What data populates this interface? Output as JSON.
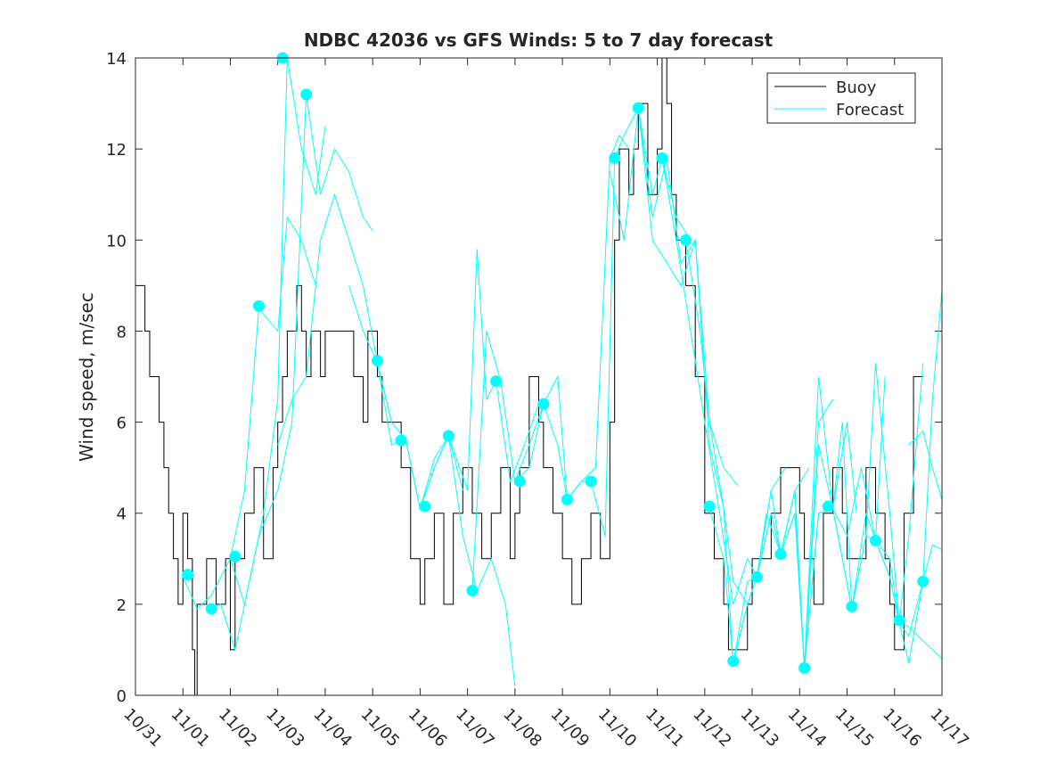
{
  "chart_data": {
    "type": "line",
    "title": "NDBC 42036 vs GFS Winds: 5 to 7 day forecast",
    "xlabel": "",
    "ylabel": "Wind speed, m/sec",
    "xlim": [
      0,
      17
    ],
    "ylim": [
      0,
      14
    ],
    "x_tick_values": [
      0,
      1,
      2,
      3,
      4,
      5,
      6,
      7,
      8,
      9,
      10,
      11,
      12,
      13,
      14,
      15,
      16,
      17
    ],
    "x_tick_labels": [
      "10/31",
      "11/01",
      "11/02",
      "11/03",
      "11/04",
      "11/05",
      "11/06",
      "11/07",
      "11/08",
      "11/09",
      "11/10",
      "11/11",
      "11/12",
      "11/13",
      "11/14",
      "11/15",
      "11/16",
      "11/17"
    ],
    "y_ticks": [
      0,
      2,
      4,
      6,
      8,
      10,
      12,
      14
    ],
    "legend": {
      "position": "top-right",
      "entries": [
        "Buoy",
        "Forecast"
      ]
    },
    "colors": {
      "buoy": "#000000",
      "forecast": "#00ffff"
    },
    "series": [
      {
        "name": "Buoy",
        "x": [
          0,
          0.2,
          0.3,
          0.5,
          0.6,
          0.7,
          0.8,
          0.9,
          1.0,
          1.1,
          1.2,
          1.25,
          1.3,
          1.5,
          1.7,
          1.9,
          2.0,
          2.1,
          2.3,
          2.5,
          2.7,
          2.9,
          3.0,
          3.1,
          3.2,
          3.4,
          3.5,
          3.6,
          3.7,
          3.9,
          4.0,
          4.3,
          4.6,
          4.8,
          4.9,
          5.1,
          5.2,
          5.4,
          5.6,
          5.8,
          6.0,
          6.1,
          6.3,
          6.5,
          6.7,
          6.9,
          7.1,
          7.3,
          7.5,
          7.7,
          7.9,
          8.0,
          8.1,
          8.3,
          8.5,
          8.6,
          8.8,
          9.0,
          9.2,
          9.4,
          9.6,
          9.8,
          10.0,
          10.1,
          10.2,
          10.4,
          10.5,
          10.6,
          10.8,
          11.0,
          11.1,
          11.2,
          11.3,
          11.4,
          11.6,
          11.8,
          12.0,
          12.2,
          12.4,
          12.5,
          12.7,
          12.9,
          13.0,
          13.2,
          13.4,
          13.6,
          13.8,
          14.0,
          14.1,
          14.3,
          14.5,
          14.7,
          14.9,
          15.0,
          15.2,
          15.4,
          15.6,
          15.8,
          15.9,
          16.0,
          16.2,
          16.4
        ],
        "values": [
          9,
          8,
          7,
          6,
          5,
          4,
          3,
          2,
          4,
          3,
          1,
          0,
          2,
          3,
          2,
          3,
          1,
          3,
          4,
          5,
          3,
          5,
          6,
          7,
          8,
          9,
          8,
          7,
          8,
          7,
          8,
          8,
          7,
          6,
          8,
          7,
          6,
          6,
          5,
          3,
          2,
          3,
          4,
          2,
          4,
          5,
          4,
          3,
          4,
          5,
          3,
          4,
          5,
          7,
          6,
          5,
          4,
          3,
          2,
          3,
          4,
          3,
          6,
          10,
          12,
          11,
          12,
          13,
          11,
          12,
          14,
          13,
          11,
          10,
          9,
          7,
          4,
          3,
          2,
          1,
          1,
          2,
          3,
          3,
          4,
          5,
          5,
          4,
          3,
          2,
          4,
          5,
          4,
          3,
          3,
          5,
          4,
          3,
          2,
          1,
          4,
          7
        ]
      },
      {
        "name": "Forecast",
        "runs": [
          {
            "x": [
              1.0,
              1.3,
              1.6,
              2.0,
              2.3,
              2.6,
              3.0,
              3.2,
              3.5,
              3.8
            ],
            "values": [
              2.6,
              1.9,
              2.2,
              3.0,
              4.5,
              8.5,
              8.0,
              10.5,
              10.0,
              9.0
            ]
          },
          {
            "x": [
              1.5,
              1.8,
              2.1,
              2.4,
              2.7,
              3.0,
              3.2,
              3.5,
              3.8,
              4.0
            ],
            "values": [
              1.9,
              2.0,
              1.0,
              2.5,
              4.0,
              6.5,
              14.0,
              12.0,
              11.0,
              12.5
            ]
          },
          {
            "x": [
              2.0,
              2.3,
              2.6,
              3.0,
              3.3,
              3.6,
              3.9,
              4.2,
              4.5,
              4.8,
              5.0
            ],
            "values": [
              3.0,
              2.0,
              3.5,
              4.5,
              6.0,
              13.2,
              11.0,
              12.0,
              11.5,
              10.5,
              10.2
            ]
          },
          {
            "x": [
              3.0,
              3.3,
              3.6,
              3.9,
              4.2,
              4.5,
              4.8,
              5.1,
              5.4,
              5.7
            ],
            "values": [
              5.5,
              6.5,
              7.0,
              10.0,
              11.0,
              10.0,
              9.0,
              7.3,
              6.0,
              5.6
            ]
          },
          {
            "x": [
              4.5,
              4.8,
              5.1,
              5.4,
              5.7,
              6.0,
              6.3,
              6.6,
              6.9
            ],
            "values": [
              9.0,
              8.0,
              7.3,
              6.0,
              5.6,
              4.1,
              5.0,
              5.7,
              4.5
            ]
          },
          {
            "x": [
              5.1,
              5.4,
              5.7,
              6.0,
              6.3,
              6.6,
              6.9,
              7.2,
              7.5,
              7.8,
              8.0
            ],
            "values": [
              7.3,
              5.5,
              5.6,
              4.1,
              5.0,
              5.7,
              3.5,
              2.3,
              3.0,
              2.0,
              0.2
            ]
          },
          {
            "x": [
              6.0,
              6.3,
              6.6,
              7.0,
              7.2,
              7.4,
              7.6,
              7.9,
              8.2,
              8.5
            ],
            "values": [
              4.1,
              5.2,
              5.7,
              4.5,
              9.8,
              6.5,
              6.9,
              4.7,
              5.5,
              6.4
            ]
          },
          {
            "x": [
              7.1,
              7.4,
              7.7,
              8.0,
              8.3,
              8.6,
              8.9,
              9.1,
              9.4
            ],
            "values": [
              2.3,
              8.0,
              6.9,
              4.7,
              5.0,
              6.4,
              7.0,
              4.3,
              4.7
            ]
          },
          {
            "x": [
              8.0,
              8.3,
              8.6,
              8.9,
              9.1,
              9.4,
              9.7,
              10.0,
              10.2,
              10.4
            ],
            "values": [
              4.7,
              5.5,
              6.4,
              5.5,
              4.3,
              4.7,
              5.0,
              11.8,
              12.3,
              12.0
            ]
          },
          {
            "x": [
              9.1,
              9.4,
              9.6,
              9.9,
              10.1,
              10.3,
              10.6,
              10.9,
              11.1,
              11.4,
              11.7
            ],
            "values": [
              4.3,
              4.7,
              4.7,
              3.5,
              11.8,
              12.3,
              12.9,
              11.0,
              11.8,
              10.5,
              10.0
            ]
          },
          {
            "x": [
              10.0,
              10.3,
              10.6,
              10.9,
              11.2,
              11.5,
              11.8,
              12.1,
              12.4,
              12.7
            ],
            "values": [
              11.5,
              10.0,
              12.9,
              10.5,
              11.8,
              9.5,
              10.0,
              6.0,
              5.0,
              4.6
            ]
          },
          {
            "x": [
              10.6,
              10.9,
              11.2,
              11.5,
              11.8,
              12.1,
              12.4,
              12.6,
              12.9,
              13.1
            ],
            "values": [
              12.9,
              10.0,
              9.5,
              9.0,
              10.0,
              5.5,
              4.1,
              2.5,
              2.0,
              2.6
            ]
          },
          {
            "x": [
              11.1,
              11.4,
              11.7,
              12.0,
              12.3,
              12.6,
              12.9,
              13.1,
              13.4,
              13.7
            ],
            "values": [
              11.8,
              10.0,
              8.0,
              6.0,
              4.1,
              2.0,
              3.0,
              2.6,
              4.5,
              5.0
            ]
          },
          {
            "x": [
              11.6,
              11.9,
              12.1,
              12.4,
              12.6,
              12.9,
              13.1,
              13.3,
              13.6,
              13.9,
              14.2
            ],
            "values": [
              10.0,
              8.0,
              6.0,
              4.1,
              0.7,
              2.5,
              2.6,
              4.0,
              3.1,
              4.5,
              5.0
            ]
          },
          {
            "x": [
              12.1,
              12.4,
              12.6,
              12.9,
              13.1,
              13.4,
              13.6,
              13.9,
              14.1,
              14.4,
              14.7
            ],
            "values": [
              4.1,
              3.0,
              0.7,
              2.0,
              2.6,
              4.5,
              3.1,
              4.0,
              0.6,
              6.0,
              6.5
            ]
          },
          {
            "x": [
              12.6,
              12.9,
              13.1,
              13.4,
              13.6,
              13.9,
              14.1,
              14.4,
              14.7,
              15.0,
              15.2
            ],
            "values": [
              0.7,
              2.0,
              2.6,
              4.0,
              3.1,
              4.5,
              0.6,
              7.0,
              4.1,
              6.0,
              4.0
            ]
          },
          {
            "x": [
              13.1,
              13.4,
              13.6,
              13.9,
              14.1,
              14.4,
              14.7,
              15.0,
              15.3,
              15.6,
              15.8
            ],
            "values": [
              2.6,
              4.0,
              3.1,
              4.5,
              0.6,
              5.5,
              4.1,
              3.5,
              5.0,
              3.4,
              7.0
            ]
          },
          {
            "x": [
              13.6,
              13.9,
              14.1,
              14.4,
              14.7,
              14.9,
              15.1,
              15.4,
              15.6,
              15.9,
              16.1
            ],
            "values": [
              3.1,
              4.0,
              0.6,
              4.0,
              4.1,
              6.0,
              1.9,
              4.0,
              3.4,
              3.0,
              1.6
            ]
          },
          {
            "x": [
              14.1,
              14.4,
              14.7,
              15.1,
              15.4,
              15.6,
              15.9,
              16.1,
              16.3,
              16.6
            ],
            "values": [
              0.6,
              4.0,
              4.1,
              1.9,
              3.5,
              7.3,
              4.0,
              1.6,
              3.5,
              7.3
            ]
          },
          {
            "x": [
              14.7,
              15.1,
              15.4,
              15.6,
              15.9,
              16.1,
              16.3,
              16.6,
              16.8,
              17.0
            ],
            "values": [
              4.1,
              1.9,
              3.5,
              3.4,
              2.6,
              1.6,
              1.3,
              2.5,
              6.5,
              8.9
            ]
          },
          {
            "x": [
              15.6,
              15.9,
              16.1,
              16.3,
              16.6,
              16.8,
              17.0
            ],
            "values": [
              3.4,
              2.6,
              1.6,
              0.7,
              2.5,
              3.3,
              3.2
            ]
          },
          {
            "x": [
              16.1,
              16.3,
              16.6,
              16.8,
              17.0
            ],
            "values": [
              1.6,
              1.5,
              1.2,
              1.0,
              0.8
            ]
          },
          {
            "x": [
              16.3,
              16.6,
              16.8,
              17.0
            ],
            "values": [
              5.5,
              5.8,
              5.0,
              4.3
            ]
          }
        ],
        "markers": {
          "x": [
            1.1,
            1.6,
            2.1,
            2.6,
            3.1,
            3.6,
            5.1,
            5.6,
            6.1,
            6.6,
            7.1,
            7.6,
            8.1,
            8.6,
            9.1,
            9.6,
            10.1,
            10.6,
            11.1,
            11.6,
            12.1,
            12.6,
            13.1,
            13.6,
            14.1,
            14.6,
            15.1,
            15.6,
            16.1,
            16.6
          ],
          "values": [
            2.65,
            1.9,
            3.05,
            8.55,
            14.0,
            13.2,
            7.35,
            5.6,
            4.15,
            5.7,
            2.3,
            6.9,
            4.7,
            6.4,
            4.3,
            4.7,
            11.8,
            12.9,
            11.8,
            10.0,
            4.15,
            0.75,
            2.6,
            3.1,
            0.6,
            4.15,
            1.95,
            3.4,
            1.65,
            2.5
          ]
        }
      }
    ]
  }
}
